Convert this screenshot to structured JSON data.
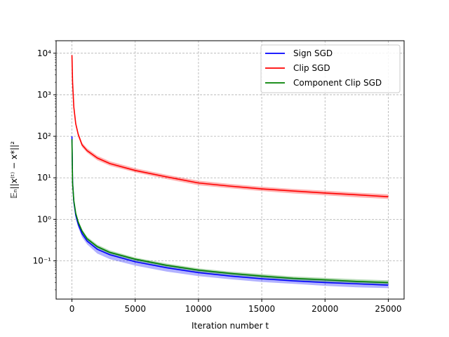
{
  "chart_data": {
    "type": "line",
    "title": "",
    "xlabel": "Iteration number t",
    "ylabel": "𝔼ₙ||x⁽ᵗ⁾ − x*||²",
    "xlim": [
      -1250,
      26250
    ],
    "ylim": [
      0.012,
      20000
    ],
    "yscale": "log",
    "grid": true,
    "legend_position": "top-right",
    "x_ticks": [
      0,
      5000,
      10000,
      15000,
      20000,
      25000
    ],
    "x_tick_labels": [
      "0",
      "5000",
      "10000",
      "15000",
      "20000",
      "25000"
    ],
    "y_ticks": [
      0.1,
      1,
      10,
      100,
      1000,
      10000
    ],
    "y_tick_labels": [
      "10⁻¹",
      "10⁰",
      "10¹",
      "10²",
      "10³",
      "10⁴"
    ],
    "x": [
      0,
      50,
      150,
      300,
      500,
      800,
      1200,
      2000,
      3000,
      5000,
      7500,
      10000,
      12500,
      15000,
      17500,
      20000,
      22500,
      25000
    ],
    "series": [
      {
        "name": "Sign SGD",
        "color": "#0000ff",
        "band_color": "#0000ff",
        "values": [
          100,
          8.0,
          2.6,
          1.25,
          0.75,
          0.45,
          0.3,
          0.19,
          0.14,
          0.095,
          0.068,
          0.052,
          0.043,
          0.037,
          0.033,
          0.03,
          0.028,
          0.026
        ],
        "lower": [
          80,
          6.8,
          2.2,
          1.05,
          0.63,
          0.37,
          0.25,
          0.15,
          0.11,
          0.077,
          0.055,
          0.043,
          0.036,
          0.031,
          0.028,
          0.025,
          0.023,
          0.022
        ],
        "upper": [
          115,
          9.5,
          3.0,
          1.45,
          0.87,
          0.52,
          0.35,
          0.22,
          0.16,
          0.11,
          0.078,
          0.06,
          0.05,
          0.043,
          0.038,
          0.035,
          0.032,
          0.03
        ]
      },
      {
        "name": "Clip SGD",
        "color": "#ff0000",
        "band_color": "#ff0000",
        "values": [
          9000,
          2000,
          500,
          200,
          110,
          62,
          45,
          30,
          22,
          15,
          10.5,
          7.5,
          6.3,
          5.4,
          4.8,
          4.3,
          3.9,
          3.5
        ],
        "lower": [
          8000,
          1800,
          440,
          180,
          96,
          55,
          40,
          26.5,
          19.5,
          13.5,
          9.3,
          6.6,
          5.6,
          4.8,
          4.2,
          3.8,
          3.4,
          3.1
        ],
        "upper": [
          9500,
          2200,
          560,
          225,
          124,
          70,
          51,
          34,
          25,
          17,
          11.8,
          8.5,
          7.1,
          6.1,
          5.4,
          4.9,
          4.4,
          4.0
        ]
      },
      {
        "name": "Component Clip SGD",
        "color": "#008000",
        "band_color": "#008000",
        "values": [
          85,
          7.5,
          2.8,
          1.4,
          0.85,
          0.52,
          0.34,
          0.22,
          0.16,
          0.11,
          0.078,
          0.06,
          0.05,
          0.043,
          0.038,
          0.035,
          0.032,
          0.03
        ],
        "lower": [
          75,
          6.8,
          2.5,
          1.27,
          0.77,
          0.47,
          0.31,
          0.2,
          0.145,
          0.099,
          0.071,
          0.054,
          0.045,
          0.039,
          0.034,
          0.031,
          0.029,
          0.027
        ],
        "upper": [
          95,
          8.3,
          3.1,
          1.55,
          0.94,
          0.58,
          0.38,
          0.245,
          0.178,
          0.12,
          0.086,
          0.066,
          0.055,
          0.048,
          0.042,
          0.039,
          0.036,
          0.034
        ]
      }
    ]
  }
}
